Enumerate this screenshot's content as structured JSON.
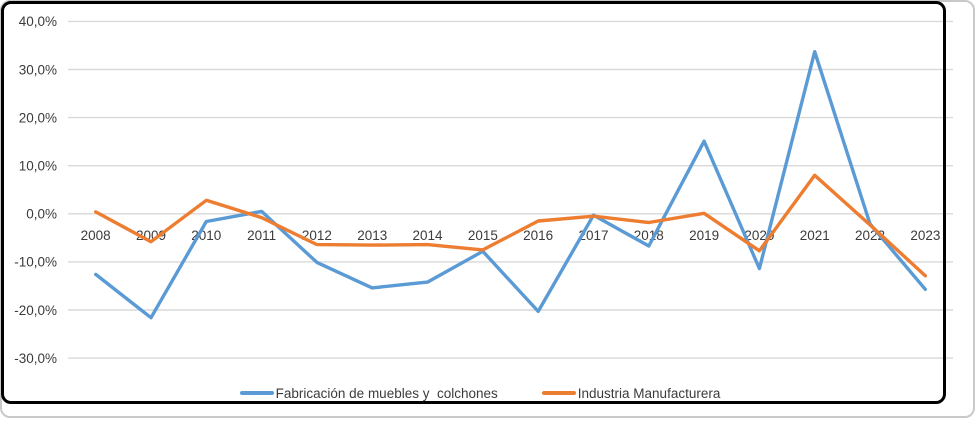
{
  "chart_data": {
    "type": "line",
    "title": "",
    "categories": [
      "2008",
      "2009",
      "2010",
      "2011",
      "2012",
      "2013",
      "2014",
      "2015",
      "2016",
      "2017",
      "2018",
      "2019",
      "2020",
      "2021",
      "2022",
      "2023"
    ],
    "series": [
      {
        "name": "Fabricación de muebles y  colchones",
        "color": "#5B9BD5",
        "values": [
          -12.6,
          -21.6,
          -1.6,
          0.5,
          -10.1,
          -15.4,
          -14.2,
          -7.8,
          -20.3,
          -0.3,
          -6.7,
          15.1,
          -11.4,
          33.7,
          -2.1,
          -15.7
        ]
      },
      {
        "name": "Industria Manufacturera",
        "color": "#ED7D31",
        "values": [
          0.4,
          -5.8,
          2.8,
          -0.8,
          -6.4,
          -6.5,
          -6.4,
          -7.5,
          -1.5,
          -0.5,
          -1.8,
          0.1,
          -7.7,
          8.0,
          -2.3,
          -12.9
        ]
      }
    ],
    "y_axis": {
      "tick_labels": [
        "40,0%",
        "30,0%",
        "20,0%",
        "10,0%",
        "0,0%",
        "-10,0%",
        "-20,0%",
        "-30,0%"
      ],
      "tick_values": [
        40,
        30,
        20,
        10,
        0,
        -10,
        -20,
        -30
      ],
      "ylim": [
        -30,
        40
      ]
    },
    "x_axis": {
      "label_position": "below-zero-line"
    },
    "grid": true,
    "legend_position": "bottom"
  },
  "colors": {
    "background": "#FFFFFF",
    "gridline": "#D9D9D9",
    "axis_text": "#3B3B3B",
    "chart_border": "#000000",
    "card_border": "#C9C9C9",
    "series_blue": "#5B9BD5",
    "series_orange": "#ED7D31"
  }
}
